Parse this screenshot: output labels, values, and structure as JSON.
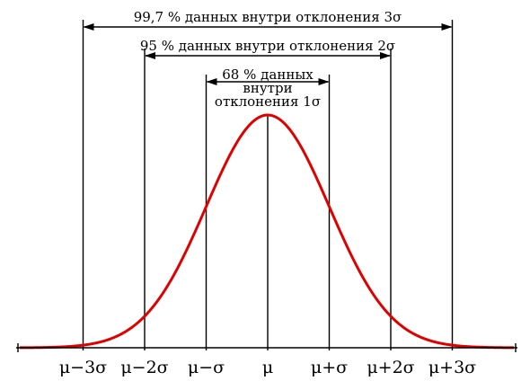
{
  "chart_data": {
    "type": "area",
    "distribution": "normal",
    "curve_color": "#e00000",
    "ticks": [
      {
        "sigma": -3,
        "label": "μ−3σ"
      },
      {
        "sigma": -2,
        "label": "μ−2σ"
      },
      {
        "sigma": -1,
        "label": "μ−σ"
      },
      {
        "sigma": 0,
        "label": "μ"
      },
      {
        "sigma": 1,
        "label": "μ+σ"
      },
      {
        "sigma": 2,
        "label": "μ+2σ"
      },
      {
        "sigma": 3,
        "label": "μ+3σ"
      }
    ],
    "bands": [
      {
        "sigma": 3,
        "percent": 99.7,
        "lines": [
          "99,7 % данных внутри отклонения 3σ"
        ]
      },
      {
        "sigma": 2,
        "percent": 95,
        "lines": [
          "95 % данных внутри отклонения 2σ"
        ]
      },
      {
        "sigma": 1,
        "percent": 68,
        "lines": [
          "68 % данных",
          "внутри",
          "отклонения 1σ"
        ]
      }
    ]
  }
}
